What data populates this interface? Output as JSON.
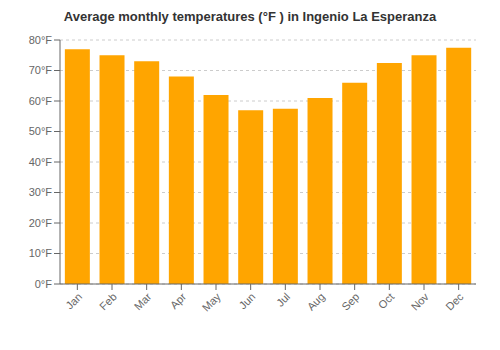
{
  "chart_data": {
    "type": "bar",
    "title": "Average monthly temperatures (°F ) in Ingenio La Esperanza",
    "categories": [
      "Jan",
      "Feb",
      "Mar",
      "Apr",
      "May",
      "Jun",
      "Jul",
      "Aug",
      "Sep",
      "Oct",
      "Nov",
      "Dec"
    ],
    "values": [
      77,
      75,
      73,
      68,
      62,
      57,
      57.5,
      61,
      66,
      72.5,
      75,
      77.5
    ],
    "color": "#FFA500",
    "ylim": [
      0,
      80
    ],
    "yticks": [
      {
        "value": 0,
        "label": "0°F"
      },
      {
        "value": 10,
        "label": "10°F"
      },
      {
        "value": 20,
        "label": "20°F"
      },
      {
        "value": 30,
        "label": "30°F"
      },
      {
        "value": 40,
        "label": "40°F"
      },
      {
        "value": 50,
        "label": "50°F"
      },
      {
        "value": 60,
        "label": "60°F"
      },
      {
        "value": 70,
        "label": "70°F"
      },
      {
        "value": 80,
        "label": "80°F"
      }
    ],
    "grid": true
  }
}
